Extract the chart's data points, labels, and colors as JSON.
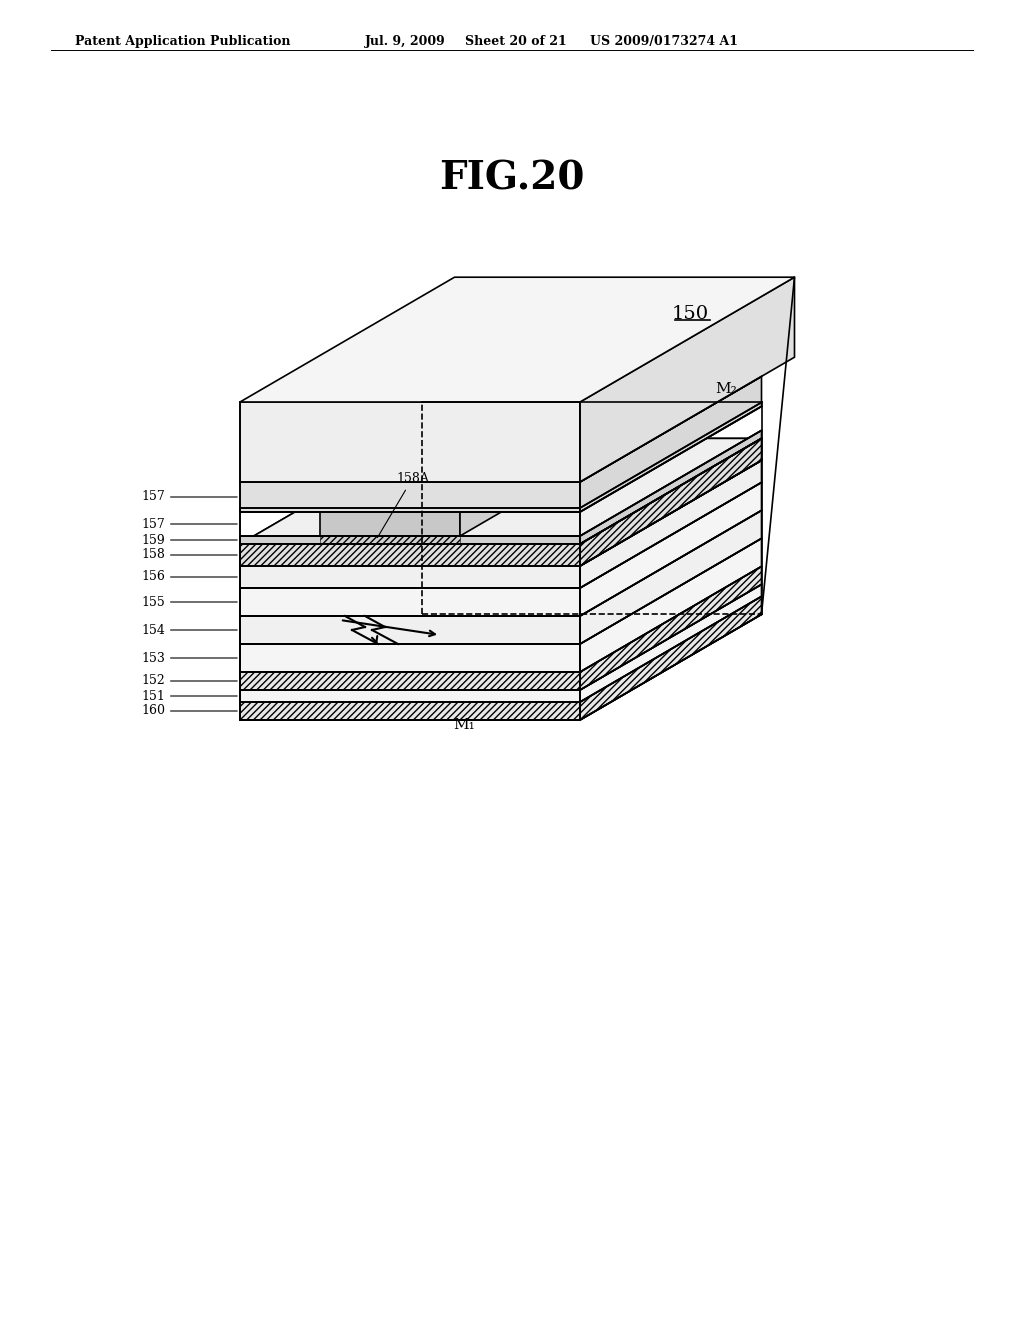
{
  "title": "FIG.20",
  "patent_header": "Patent Application Publication",
  "patent_date": "Jul. 9, 2009",
  "patent_sheet": "Sheet 20 of 21",
  "patent_number": "US 2009/0173274 A1",
  "device_label": "150",
  "m1_label": "M₁",
  "m2_label": "M₂",
  "layer_labels": [
    "160",
    "151",
    "152",
    "153",
    "154",
    "155",
    "156",
    "158",
    "159",
    "157"
  ],
  "label_158A": "158A",
  "bg_color": "#ffffff",
  "line_color": "#000000",
  "hatch_color": "#000000",
  "layer_fill": "#f0f0f0",
  "ridge_fill": "#e8e8e8",
  "top_layer_fill": "#d8d8d8"
}
